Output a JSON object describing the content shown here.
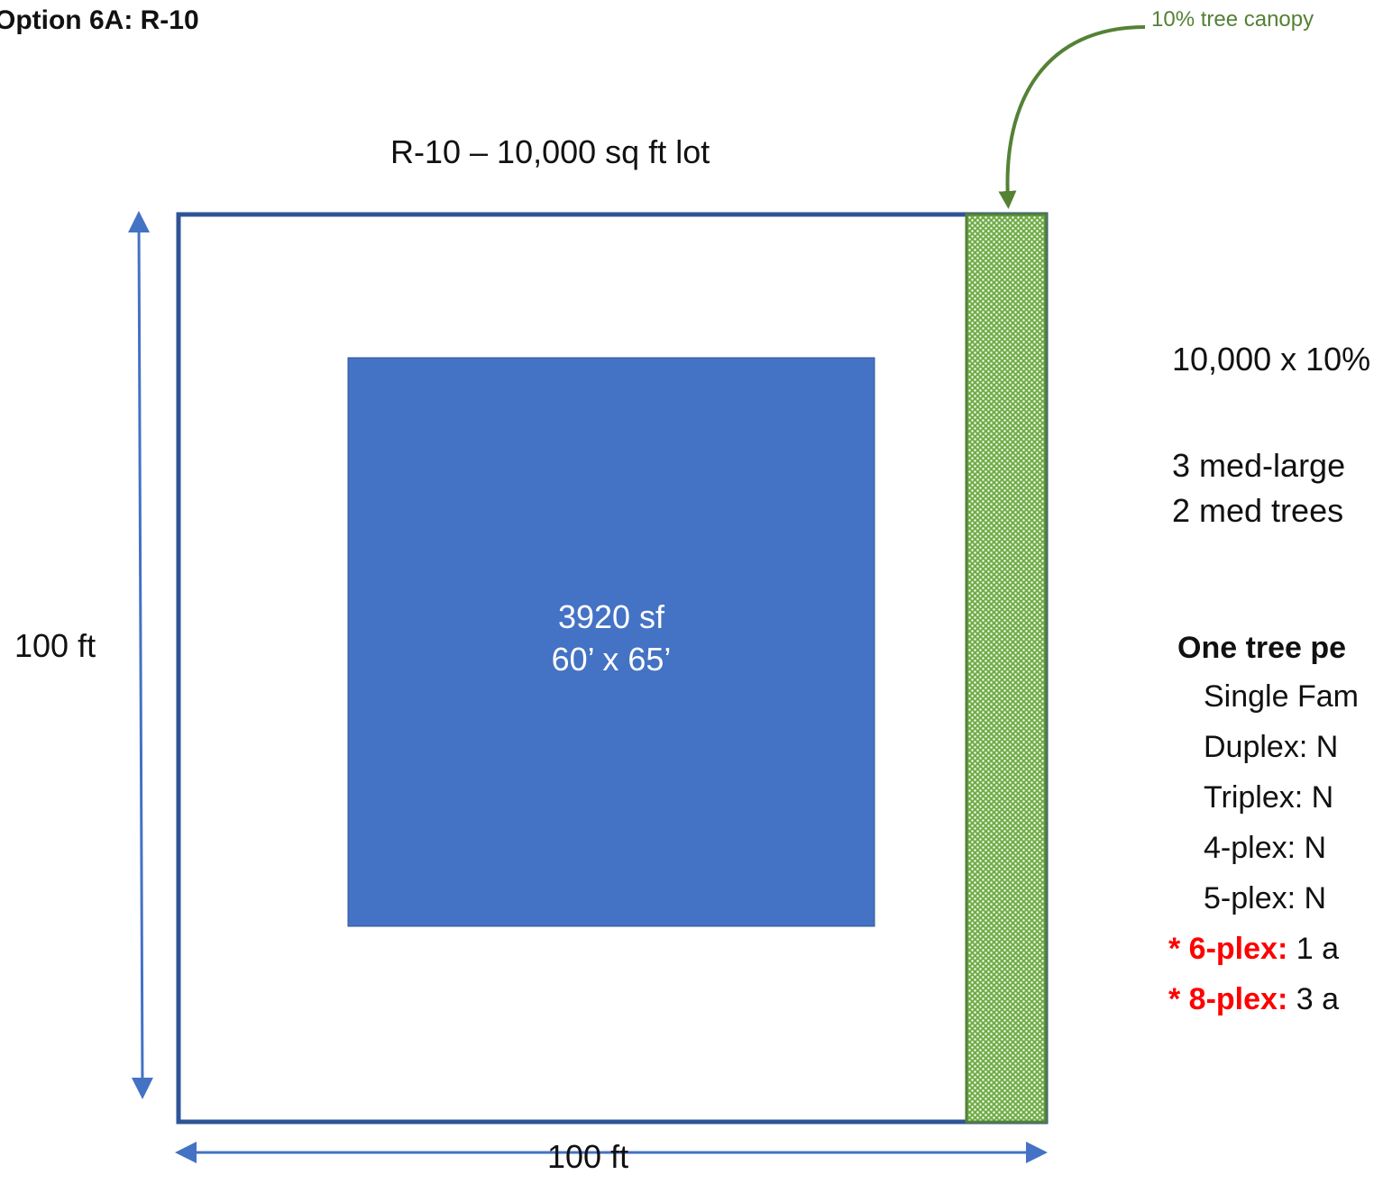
{
  "title": "Option 6A: R-10",
  "canopy_callout": "10% tree canopy",
  "lot_label": "R-10 – 10,000 sq ft lot",
  "side_dimension": "100 ft",
  "bottom_dimension": "100 ft",
  "building": {
    "area": "3920 sf",
    "dimensions": "60’ x 65’"
  },
  "calculation": {
    "line1": "10,000 x 10%",
    "line2": "3 med-large",
    "line3": "2 med trees"
  },
  "tree_info": {
    "heading": "One tree pe",
    "items": [
      "Single Fam",
      "Duplex:  N",
      "Triplex:   N",
      "4-plex:    N",
      "5-plex:    N"
    ],
    "highlights": [
      {
        "prefix": "* 6-plex:",
        "rest": " 1 a"
      },
      {
        "prefix": "* 8-plex:",
        "rest": " 3 a"
      }
    ]
  },
  "colors": {
    "lot_border": "#2f5496",
    "building_fill": "#4472c4",
    "canopy_green": "#548235",
    "dimension_arrow": "#4472c4",
    "highlight_red": "#ff0000"
  }
}
